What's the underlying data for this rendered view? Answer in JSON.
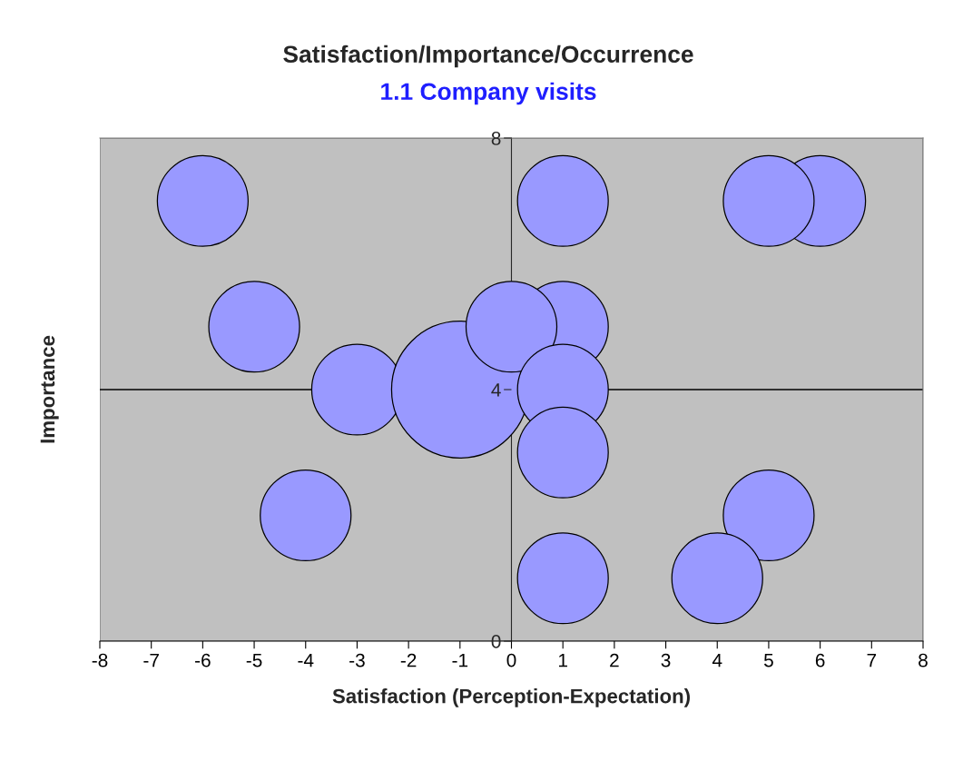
{
  "chart_data": {
    "type": "bubble",
    "title": "Satisfaction/Importance/Occurrence",
    "subtitle": "1.1 Company visits",
    "xlabel": "Satisfaction (Perception-Expectation)",
    "ylabel": "Importance",
    "x": [
      6,
      5,
      5,
      4,
      -6,
      -5,
      -4,
      -3,
      -1,
      1,
      1,
      0,
      1,
      1,
      1
    ],
    "values": [
      7,
      7,
      2,
      1,
      7,
      5,
      2,
      4,
      4,
      7,
      5,
      5,
      4,
      3,
      1
    ],
    "sizes": [
      0.44,
      0.44,
      0.44,
      0.44,
      0.44,
      0.44,
      0.44,
      0.44,
      1,
      0.44,
      0.44,
      0.44,
      0.44,
      0.44,
      0.44
    ],
    "color": "#9999ff",
    "xlim": [
      -8,
      8
    ],
    "xticks": [
      -8,
      -7,
      -6,
      -5,
      -4,
      -3,
      -2,
      -1,
      0,
      1,
      2,
      3,
      4,
      5,
      6,
      7,
      8
    ],
    "ylim": [
      0,
      8
    ],
    "yticks": [
      0,
      4,
      8
    ],
    "ref_lines": [
      {
        "axis": "y",
        "value": 4,
        "color": "#000000"
      }
    ],
    "grid": false,
    "legend": false
  }
}
